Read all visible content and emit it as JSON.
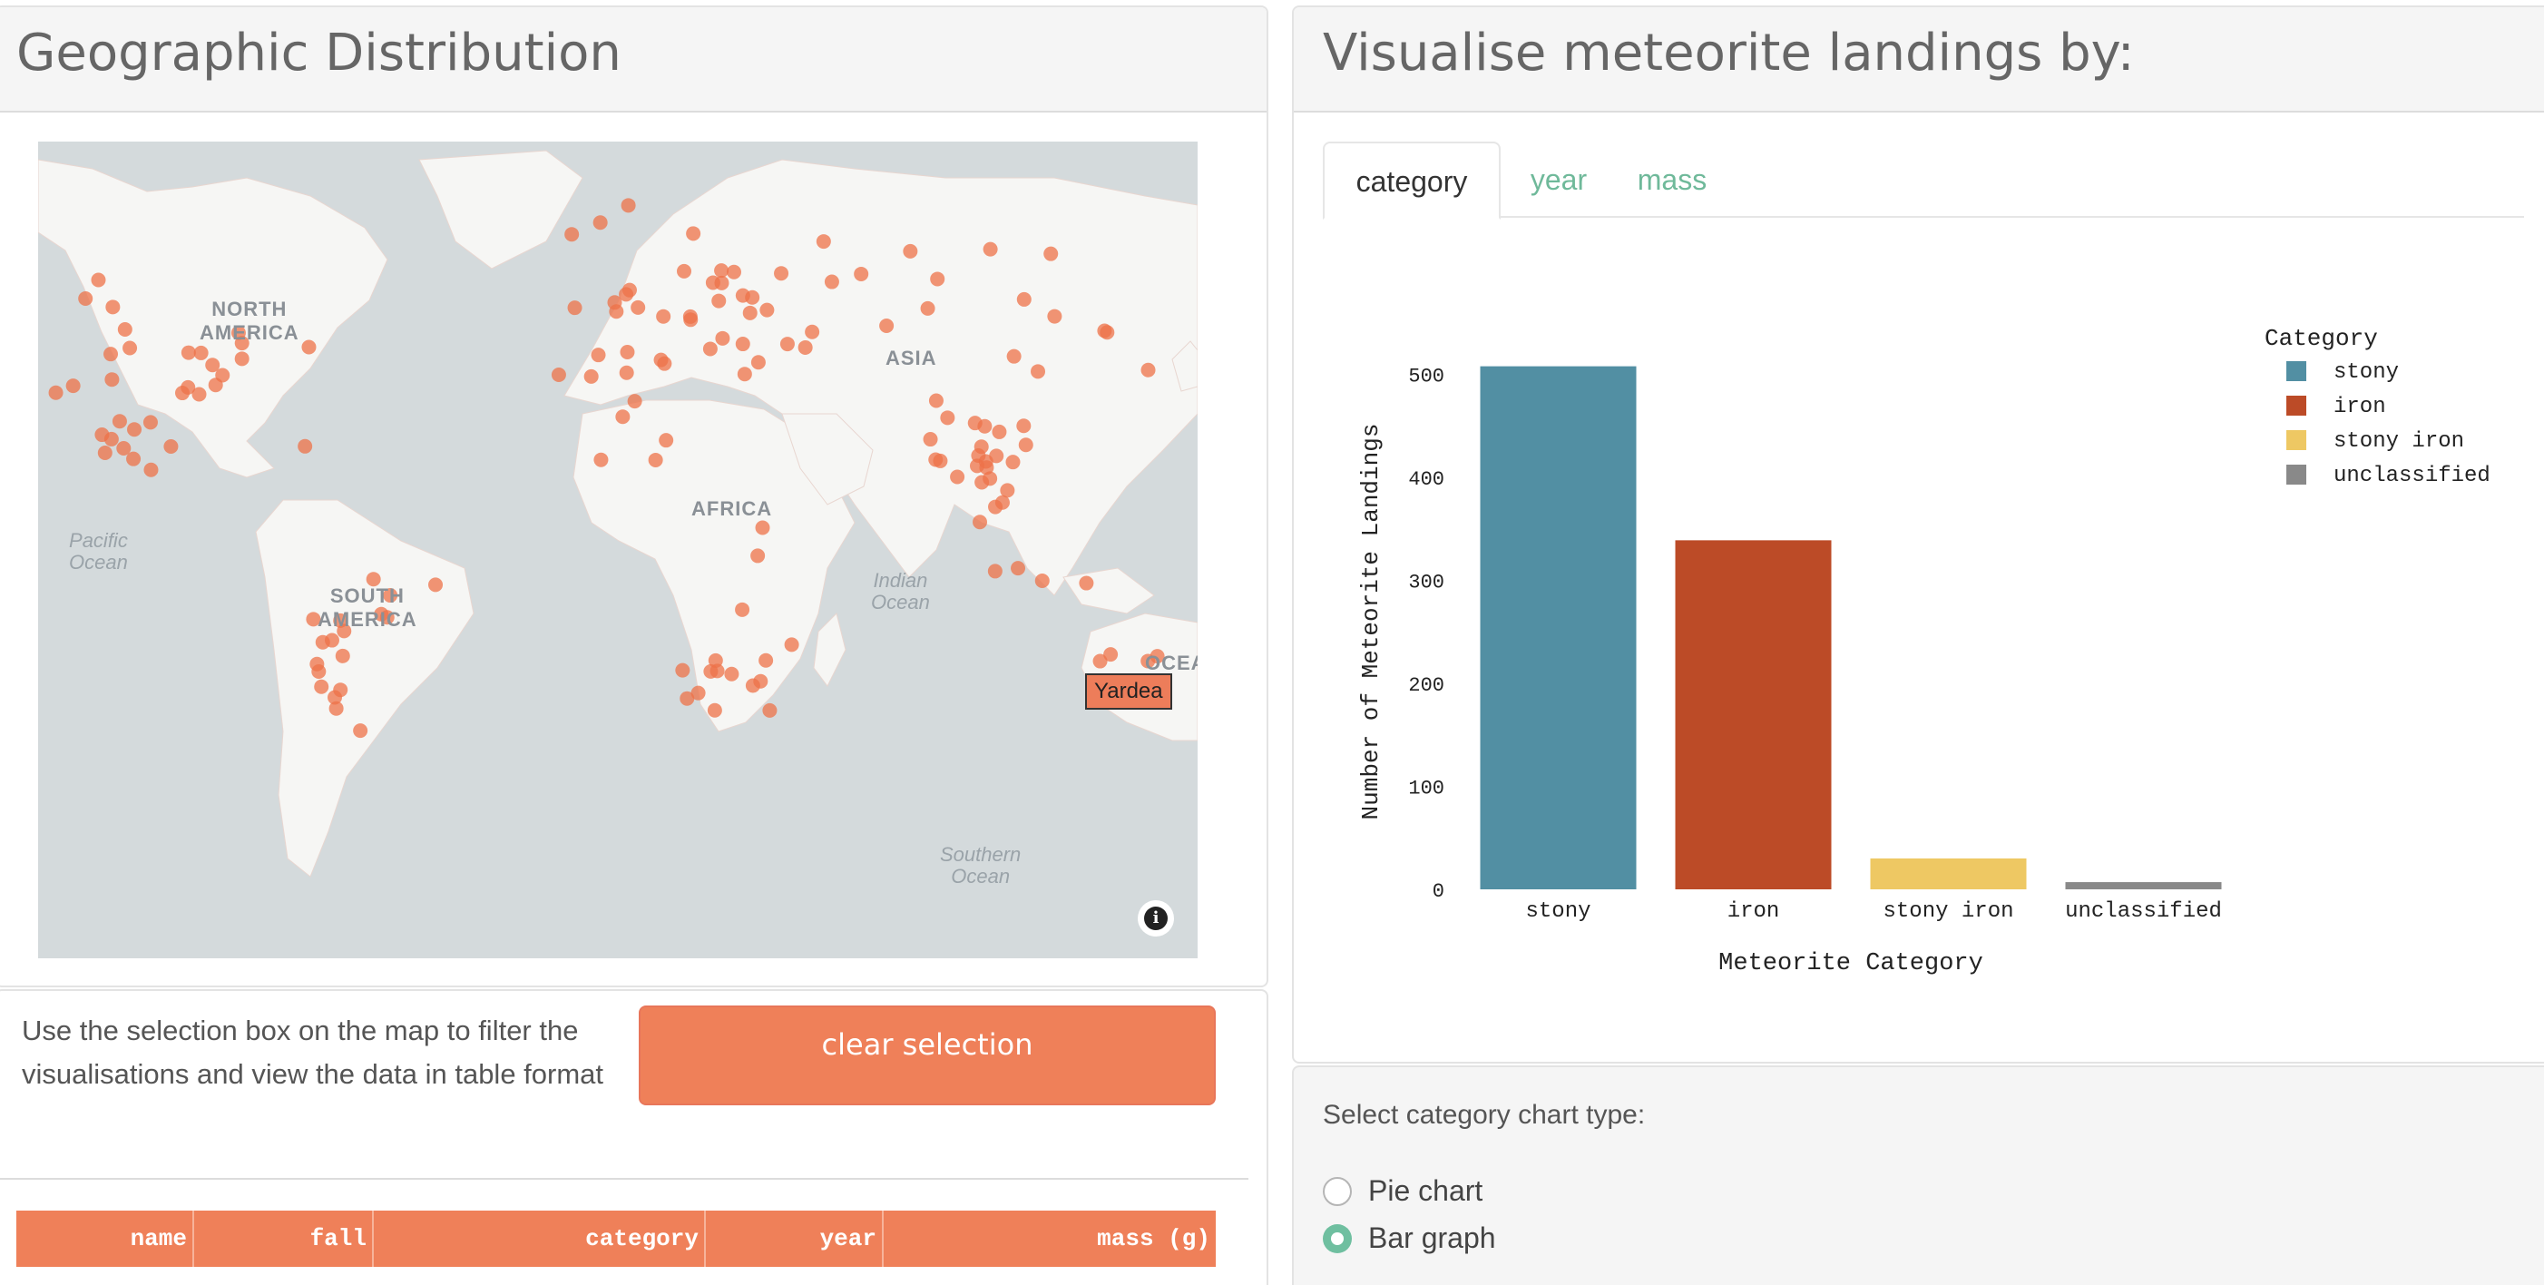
{
  "left_panel": {
    "title": "Geographic Distribution",
    "map": {
      "continent_labels": {
        "north_america": "NORTH\nAMERICA",
        "south_america": "SOUTH\nAMERICA",
        "africa": "AFRICA",
        "asia": "ASIA",
        "oceania": "OCEA"
      },
      "ocean_labels": {
        "pacific": "Pacific\nOcean",
        "indian": "Indian\nOcean",
        "southern": "Southern\nOcean"
      },
      "tooltip": "Yardea",
      "info_icon": "i",
      "point_color": "#ed7148",
      "water_color": "#d4dadc",
      "land_color": "#f6f6f4"
    },
    "selection_text": "Use the selection box on the map to filter the visualisations and view the data in table format",
    "clear_button": "clear selection",
    "table_headers": [
      "name",
      "fall",
      "category",
      "year",
      "mass (g)"
    ]
  },
  "right_panel": {
    "title": "Visualise meteorite landings by:",
    "tabs": [
      "category",
      "year",
      "mass"
    ],
    "active_tab": "category",
    "chart_type_label": "Select category chart type:",
    "chart_type_options": [
      "Pie chart",
      "Bar graph"
    ],
    "selected_chart_type": "Bar graph"
  },
  "chart_data": {
    "type": "bar",
    "categories": [
      "stony",
      "iron",
      "stony iron",
      "unclassified"
    ],
    "values": [
      508,
      339,
      30,
      7
    ],
    "colors": [
      "#528fa3",
      "#bc4b27",
      "#eec863",
      "#898989"
    ],
    "xlabel": "Meteorite Category",
    "ylabel": "Number of Meteorite Landings",
    "ylim": [
      0,
      520
    ],
    "yticks": [
      0,
      100,
      200,
      300,
      400,
      500
    ],
    "legend_title": "Category",
    "legend": [
      "stony",
      "iron",
      "stony iron",
      "unclassified"
    ],
    "legend_position": "top-right"
  }
}
